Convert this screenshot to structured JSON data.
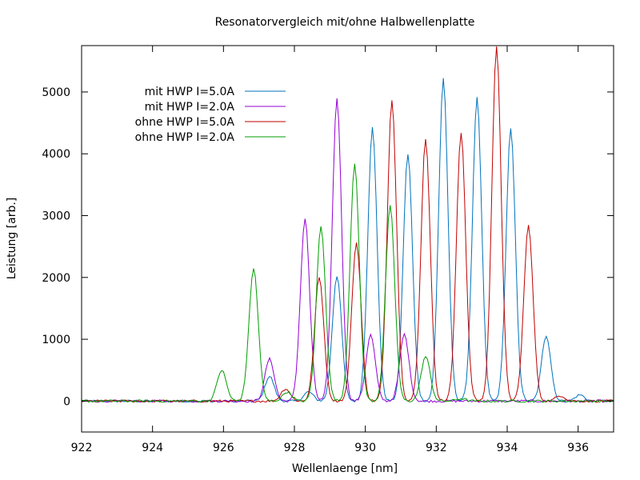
{
  "chart_data": {
    "type": "line",
    "title": "Resonatorvergleich mit/ohne Halbwellenplatte",
    "xlabel": "Wellenlaenge [nm]",
    "ylabel": "Leistung [arb.]",
    "xlim": [
      922,
      937
    ],
    "ylim": [
      -500,
      5750
    ],
    "xticks": [
      922,
      924,
      926,
      928,
      930,
      932,
      934,
      936
    ],
    "yticks": [
      0,
      1000,
      2000,
      3000,
      4000,
      5000
    ],
    "grid": false,
    "legend_position": "top-left",
    "series": [
      {
        "name": "mit HWP I=5.0A",
        "color": "#0072bd",
        "baseline": 0,
        "peaks": [
          {
            "x": 927.3,
            "y": 400
          },
          {
            "x": 928.4,
            "y": 150
          },
          {
            "x": 929.2,
            "y": 2030
          },
          {
            "x": 930.2,
            "y": 4420
          },
          {
            "x": 931.2,
            "y": 4000
          },
          {
            "x": 932.2,
            "y": 5220
          },
          {
            "x": 933.15,
            "y": 4900
          },
          {
            "x": 934.1,
            "y": 4400
          },
          {
            "x": 935.1,
            "y": 1060
          },
          {
            "x": 936.05,
            "y": 100
          }
        ]
      },
      {
        "name": "mit HWP I=2.0A",
        "color": "#9400d3",
        "baseline": 0,
        "peaks": [
          {
            "x": 927.3,
            "y": 680
          },
          {
            "x": 928.3,
            "y": 2950
          },
          {
            "x": 929.2,
            "y": 4900
          },
          {
            "x": 930.15,
            "y": 1070
          },
          {
            "x": 931.1,
            "y": 1080
          }
        ]
      },
      {
        "name": "ohne HWP I=5.0A",
        "color": "#c00000",
        "baseline": 0,
        "peaks": [
          {
            "x": 927.75,
            "y": 200
          },
          {
            "x": 928.7,
            "y": 2000
          },
          {
            "x": 929.75,
            "y": 2560
          },
          {
            "x": 930.75,
            "y": 4880
          },
          {
            "x": 931.7,
            "y": 4250
          },
          {
            "x": 932.7,
            "y": 4350
          },
          {
            "x": 933.7,
            "y": 5750
          },
          {
            "x": 934.6,
            "y": 2840
          },
          {
            "x": 935.5,
            "y": 90
          }
        ]
      },
      {
        "name": "ohne HWP I=2.0A",
        "color": "#009e00",
        "baseline": 0,
        "peaks": [
          {
            "x": 925.95,
            "y": 500
          },
          {
            "x": 926.85,
            "y": 2150
          },
          {
            "x": 927.8,
            "y": 150
          },
          {
            "x": 928.75,
            "y": 2820
          },
          {
            "x": 929.7,
            "y": 3820
          },
          {
            "x": 930.7,
            "y": 3150
          },
          {
            "x": 931.7,
            "y": 720
          },
          {
            "x": 932.7,
            "y": 40
          }
        ]
      }
    ]
  }
}
